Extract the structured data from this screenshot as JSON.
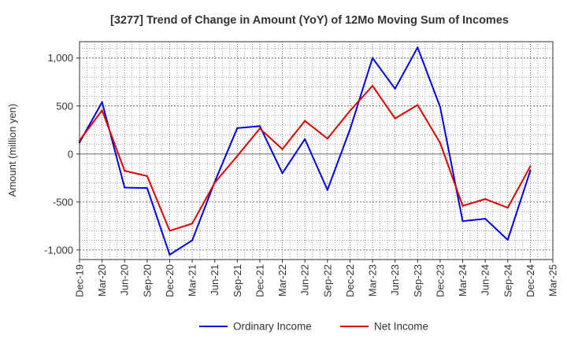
{
  "chart_data": {
    "type": "line",
    "title": "[3277]  Trend of Change in Amount (YoY) of 12Mo Moving Sum of Incomes",
    "xlabel": "",
    "ylabel": "Amount (million yen)",
    "categories": [
      "Dec-19",
      "Mar-20",
      "Jun-20",
      "Sep-20",
      "Dec-20",
      "Mar-21",
      "Jun-21",
      "Sep-21",
      "Dec-21",
      "Mar-22",
      "Jun-22",
      "Sep-22",
      "Dec-22",
      "Mar-23",
      "Jun-23",
      "Sep-23",
      "Dec-23",
      "Mar-24",
      "Jun-24",
      "Sep-24",
      "Dec-24",
      "Mar-25"
    ],
    "yticks": [
      1000,
      500,
      0,
      -500,
      -1000
    ],
    "ytick_labels": [
      "1,000",
      "500",
      "0",
      "-500",
      "-1,000"
    ],
    "ylim": [
      -1100,
      1170
    ],
    "grid": true,
    "legend_position": "bottom",
    "series": [
      {
        "name": "Ordinary Income",
        "color": "#0000dd",
        "values": [
          120,
          540,
          -350,
          -355,
          -1050,
          -900,
          -290,
          270,
          290,
          -200,
          155,
          -375,
          255,
          1000,
          680,
          1110,
          490,
          -700,
          -675,
          -895,
          -175,
          null
        ]
      },
      {
        "name": "Net Income",
        "color": "#dd0000",
        "values": [
          140,
          455,
          -175,
          -230,
          -800,
          -725,
          -300,
          -20,
          265,
          50,
          345,
          160,
          450,
          710,
          370,
          510,
          115,
          -540,
          -470,
          -560,
          -130,
          null
        ]
      }
    ]
  }
}
